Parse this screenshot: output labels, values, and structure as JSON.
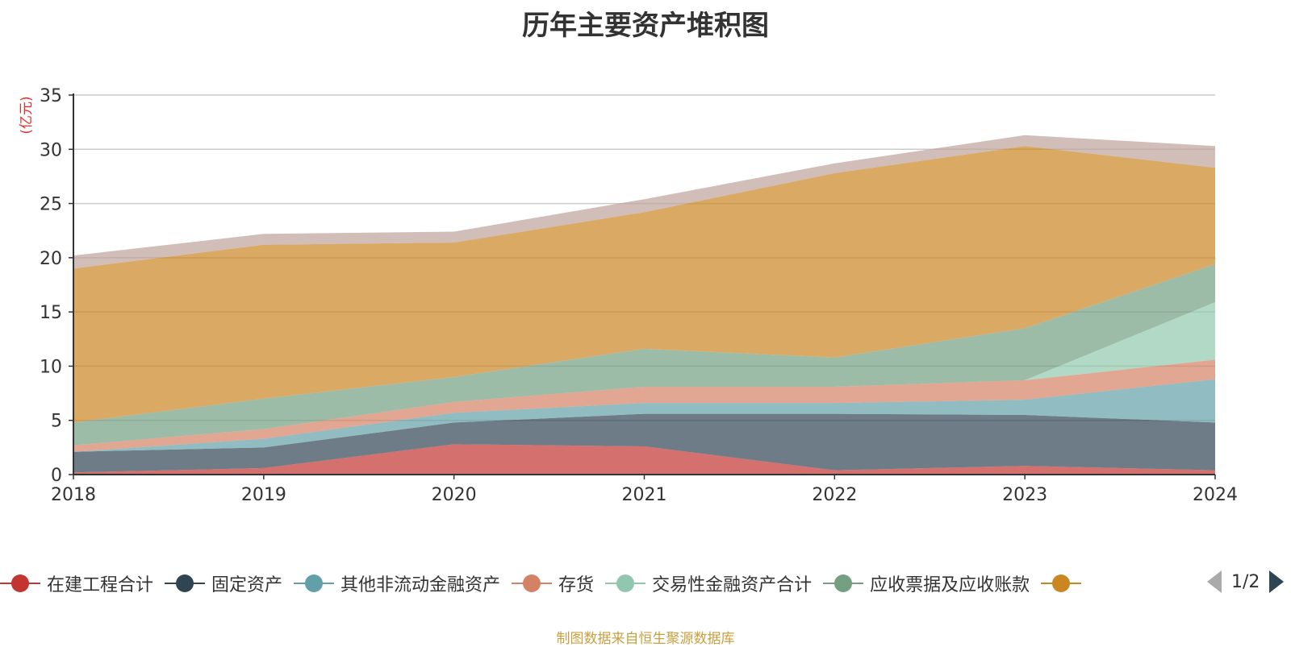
{
  "title": "历年主要资产堆积图",
  "source_note": "制图数据来自恒生聚源数据库",
  "pager": {
    "text": "1/2"
  },
  "chart_data": {
    "type": "area",
    "stacked": true,
    "title": "历年主要资产堆积图",
    "ylabel": "(亿元)",
    "xlabel": "",
    "x": [
      "2018",
      "2019",
      "2020",
      "2021",
      "2022",
      "2023",
      "2024"
    ],
    "ylim": [
      0,
      35
    ],
    "yticks": [
      0,
      5,
      10,
      15,
      20,
      25,
      30,
      35
    ],
    "grid": true,
    "legend_position": "bottom",
    "series": [
      {
        "name": "在建工程合计",
        "color": "#c23531",
        "values": [
          0.2,
          0.6,
          2.8,
          2.6,
          0.4,
          0.8,
          0.4
        ]
      },
      {
        "name": "固定资产",
        "color": "#2f4554",
        "values": [
          1.9,
          1.9,
          2.0,
          3.0,
          5.2,
          4.7,
          4.4
        ]
      },
      {
        "name": "其他非流动金融资产",
        "color": "#61a0a8",
        "values": [
          0,
          0.8,
          0.9,
          1.0,
          1.0,
          1.4,
          4.0
        ]
      },
      {
        "name": "存货",
        "color": "#d48265",
        "values": [
          0.6,
          0.9,
          1.0,
          1.5,
          1.5,
          1.8,
          1.8
        ]
      },
      {
        "name": "交易性金融资产合计",
        "color": "#91c7ae",
        "values": [
          0,
          0,
          0,
          0,
          0,
          0,
          5.3
        ]
      },
      {
        "name": "应收票据及应收账款",
        "color": "#749f83",
        "values": [
          2.1,
          2.8,
          2.3,
          3.5,
          2.7,
          4.8,
          3.5
        ]
      },
      {
        "name": "",
        "color": "#ca8622",
        "values": [
          14.2,
          14.2,
          12.4,
          12.6,
          17.0,
          16.8,
          8.9
        ]
      },
      {
        "name": "",
        "color": "#bda29a",
        "values": [
          1.2,
          1.0,
          1.0,
          1.2,
          0.9,
          1.0,
          2.0
        ]
      }
    ],
    "legend_visible_count": 7
  }
}
